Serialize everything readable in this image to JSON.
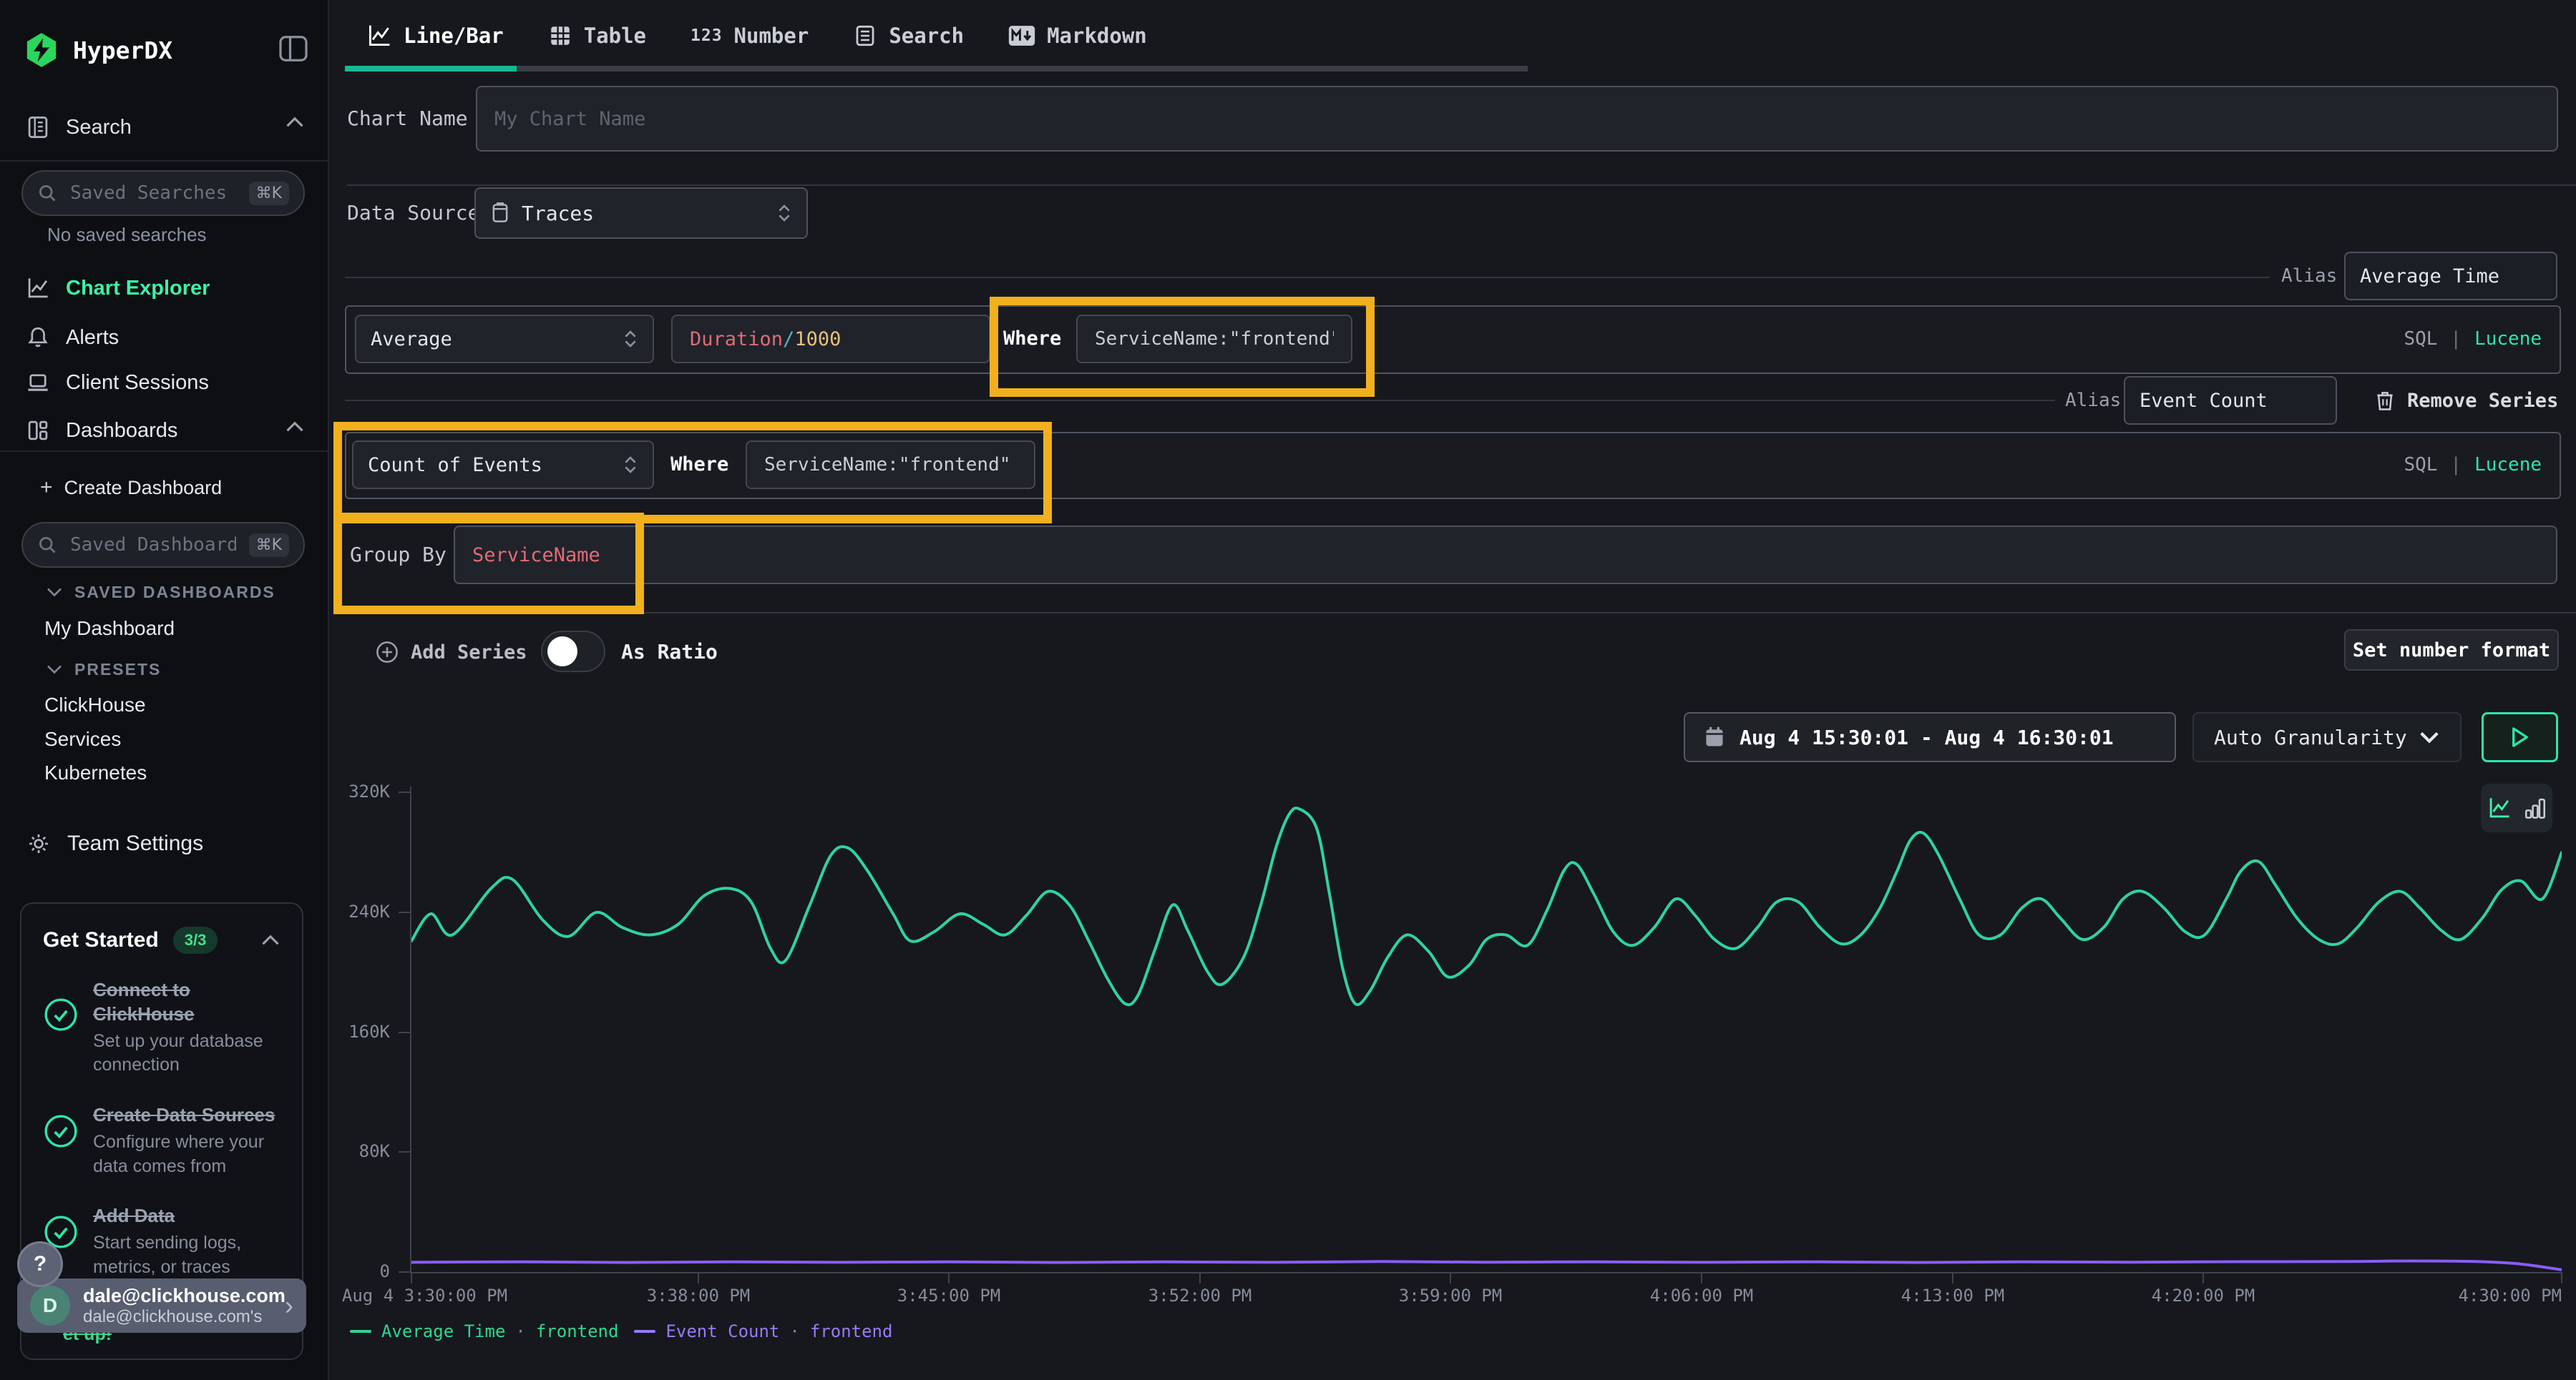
{
  "app": {
    "name": "HyperDX"
  },
  "colors": {
    "accent_teal": "#3df2a6",
    "highlight_orange": "#f2b01e",
    "tab_underline": "#17b893",
    "series_avg_time": "#2ed3a0",
    "series_event_count": "#8b5cf6",
    "token_field": "#e06c75",
    "token_operator": "#56b6c2",
    "token_number": "#e5c07b"
  },
  "sidebar": {
    "search_section": {
      "label": "Search"
    },
    "saved_searches": {
      "placeholder": "Saved Searches",
      "shortcut": "⌘K",
      "empty": "No saved searches"
    },
    "nav": [
      {
        "label": "Chart Explorer"
      },
      {
        "label": "Alerts"
      },
      {
        "label": "Client Sessions"
      },
      {
        "label": "Dashboards"
      }
    ],
    "create_dashboard": {
      "plus": "+",
      "label": "Create Dashboard"
    },
    "saved_dashboards": {
      "placeholder": "Saved Dashboards",
      "shortcut": "⌘K"
    },
    "sections": [
      {
        "label": "SAVED DASHBOARDS",
        "items": [
          "My Dashboard"
        ]
      },
      {
        "label": "PRESETS",
        "items": [
          "ClickHouse",
          "Services",
          "Kubernetes"
        ]
      }
    ],
    "team_settings": "Team Settings",
    "get_started": {
      "title": "Get Started",
      "badge": "3/3",
      "items": [
        {
          "title": "Connect to ClickHouse",
          "desc": "Set up your database connection"
        },
        {
          "title": "Create Data Sources",
          "desc": "Configure where your data comes from"
        },
        {
          "title": "Add Data",
          "desc": "Start sending logs, metrics, or traces"
        }
      ],
      "fragment": "et up!"
    },
    "help": "?",
    "user": {
      "avatar": "D",
      "email": "dale@clickhouse.com",
      "team": "dale@clickhouse.com's",
      "chevron": "›"
    }
  },
  "tabs": [
    {
      "label": "Line/Bar",
      "active": true
    },
    {
      "label": "Table"
    },
    {
      "label": "Number",
      "icon_text": "123"
    },
    {
      "label": "Search"
    },
    {
      "label": "Markdown"
    }
  ],
  "form": {
    "chart_name": {
      "label": "Chart Name",
      "placeholder": "My Chart Name"
    },
    "data_source": {
      "label": "Data Source",
      "value": "Traces"
    },
    "series": [
      {
        "alias_label": "Alias",
        "alias": "Average Time",
        "aggregation": "Average",
        "field_tokens": {
          "field": "Duration",
          "op": "/",
          "num": "1000"
        },
        "where_label": "Where",
        "where": "ServiceName:\"frontend\"",
        "sql": "SQL",
        "pipe": "|",
        "lucene": "Lucene"
      },
      {
        "alias_label": "Alias",
        "alias": "Event Count",
        "aggregation": "Count of Events",
        "where_label": "Where",
        "where": "ServiceName:\"frontend\"",
        "remove": "Remove Series",
        "sql": "SQL",
        "pipe": "|",
        "lucene": "Lucene"
      }
    ],
    "group_by": {
      "label": "Group By",
      "value": "ServiceName"
    },
    "add_series": "Add Series",
    "as_ratio": "As Ratio",
    "set_number_format": "Set number format"
  },
  "toolbar": {
    "date_range": "Aug 4 15:30:01 - Aug 4 16:30:01",
    "granularity": "Auto Granularity"
  },
  "chart_data": {
    "type": "line",
    "ylabel": "",
    "xlabel": "",
    "ylim_k": [
      0,
      324
    ],
    "x_range": [
      "Aug 4 3:30:00 PM",
      "Aug 4 4:30:01 PM"
    ],
    "grid": false,
    "legend_position": "bottom-left",
    "y_axis": {
      "ticks": [
        {
          "v": 320,
          "label": "320K"
        },
        {
          "v": 240,
          "label": "240K"
        },
        {
          "v": 160,
          "label": "160K"
        },
        {
          "v": 80,
          "label": "80K"
        },
        {
          "v": 0,
          "label": "0"
        }
      ]
    },
    "x_axis": {
      "ticks": [
        {
          "f": 0.0,
          "label": "Aug 4 3:30:00 PM"
        },
        {
          "f": 0.1333,
          "label": "3:38:00 PM"
        },
        {
          "f": 0.25,
          "label": "3:45:00 PM"
        },
        {
          "f": 0.3667,
          "label": "3:52:00 PM"
        },
        {
          "f": 0.4833,
          "label": "3:59:00 PM"
        },
        {
          "f": 0.6,
          "label": "4:06:00 PM"
        },
        {
          "f": 0.7167,
          "label": "4:13:00 PM"
        },
        {
          "f": 0.8333,
          "label": "4:20:00 PM"
        },
        {
          "f": 1.0,
          "label": "4:30:00 PM"
        }
      ]
    },
    "series": [
      {
        "name": "Average Time",
        "group": "frontend",
        "color": "#2ed3a0",
        "points": [
          [
            0,
            221
          ],
          [
            0.009,
            239
          ],
          [
            0.019,
            225
          ],
          [
            0.037,
            256
          ],
          [
            0.047,
            262
          ],
          [
            0.061,
            235
          ],
          [
            0.073,
            224
          ],
          [
            0.086,
            240
          ],
          [
            0.098,
            230
          ],
          [
            0.111,
            225
          ],
          [
            0.124,
            232
          ],
          [
            0.136,
            251
          ],
          [
            0.148,
            256
          ],
          [
            0.158,
            247
          ],
          [
            0.167,
            216
          ],
          [
            0.174,
            208
          ],
          [
            0.185,
            244
          ],
          [
            0.195,
            278
          ],
          [
            0.203,
            283
          ],
          [
            0.212,
            268
          ],
          [
            0.224,
            239
          ],
          [
            0.232,
            221
          ],
          [
            0.243,
            227
          ],
          [
            0.255,
            239
          ],
          [
            0.266,
            232
          ],
          [
            0.276,
            225
          ],
          [
            0.286,
            238
          ],
          [
            0.296,
            254
          ],
          [
            0.306,
            245
          ],
          [
            0.315,
            221
          ],
          [
            0.324,
            195
          ],
          [
            0.332,
            179
          ],
          [
            0.338,
            185
          ],
          [
            0.346,
            216
          ],
          [
            0.354,
            245
          ],
          [
            0.361,
            228
          ],
          [
            0.37,
            201
          ],
          [
            0.377,
            192
          ],
          [
            0.387,
            210
          ],
          [
            0.395,
            245
          ],
          [
            0.402,
            283
          ],
          [
            0.408,
            305
          ],
          [
            0.413,
            309
          ],
          [
            0.421,
            296
          ],
          [
            0.427,
            252
          ],
          [
            0.433,
            203
          ],
          [
            0.439,
            179
          ],
          [
            0.446,
            188
          ],
          [
            0.454,
            210
          ],
          [
            0.463,
            225
          ],
          [
            0.473,
            214
          ],
          [
            0.482,
            197
          ],
          [
            0.492,
            205
          ],
          [
            0.5,
            222
          ],
          [
            0.509,
            225
          ],
          [
            0.519,
            218
          ],
          [
            0.528,
            241
          ],
          [
            0.536,
            268
          ],
          [
            0.542,
            272
          ],
          [
            0.55,
            252
          ],
          [
            0.559,
            227
          ],
          [
            0.568,
            218
          ],
          [
            0.578,
            230
          ],
          [
            0.588,
            249
          ],
          [
            0.597,
            238
          ],
          [
            0.606,
            222
          ],
          [
            0.616,
            216
          ],
          [
            0.626,
            230
          ],
          [
            0.635,
            247
          ],
          [
            0.645,
            247
          ],
          [
            0.655,
            230
          ],
          [
            0.665,
            219
          ],
          [
            0.674,
            225
          ],
          [
            0.683,
            243
          ],
          [
            0.691,
            268
          ],
          [
            0.697,
            288
          ],
          [
            0.703,
            293
          ],
          [
            0.71,
            279
          ],
          [
            0.72,
            249
          ],
          [
            0.729,
            225
          ],
          [
            0.739,
            225
          ],
          [
            0.749,
            243
          ],
          [
            0.758,
            249
          ],
          [
            0.767,
            236
          ],
          [
            0.777,
            222
          ],
          [
            0.787,
            230
          ],
          [
            0.796,
            249
          ],
          [
            0.805,
            254
          ],
          [
            0.815,
            243
          ],
          [
            0.825,
            227
          ],
          [
            0.834,
            225
          ],
          [
            0.844,
            249
          ],
          [
            0.851,
            268
          ],
          [
            0.859,
            274
          ],
          [
            0.867,
            258
          ],
          [
            0.877,
            236
          ],
          [
            0.887,
            222
          ],
          [
            0.896,
            219
          ],
          [
            0.905,
            230
          ],
          [
            0.915,
            247
          ],
          [
            0.925,
            254
          ],
          [
            0.934,
            243
          ],
          [
            0.944,
            228
          ],
          [
            0.953,
            222
          ],
          [
            0.963,
            236
          ],
          [
            0.972,
            255
          ],
          [
            0.981,
            261
          ],
          [
            0.991,
            249
          ],
          [
            1,
            280
          ]
        ]
      },
      {
        "name": "Event Count",
        "group": "frontend",
        "color": "#8b5cf6",
        "points": [
          [
            0,
            6.5
          ],
          [
            0.05,
            6.8
          ],
          [
            0.1,
            6.4
          ],
          [
            0.15,
            6.8
          ],
          [
            0.2,
            6.5
          ],
          [
            0.25,
            6.8
          ],
          [
            0.3,
            6.4
          ],
          [
            0.35,
            6.8
          ],
          [
            0.4,
            6.5
          ],
          [
            0.45,
            7
          ],
          [
            0.5,
            6.6
          ],
          [
            0.55,
            6.8
          ],
          [
            0.6,
            6.5
          ],
          [
            0.65,
            6.8
          ],
          [
            0.7,
            6.4
          ],
          [
            0.75,
            6.8
          ],
          [
            0.8,
            6.6
          ],
          [
            0.85,
            6.9
          ],
          [
            0.9,
            7
          ],
          [
            0.93,
            7.4
          ],
          [
            0.96,
            7
          ],
          [
            0.98,
            5.5
          ],
          [
            1,
            1.5
          ]
        ]
      }
    ],
    "legend": [
      {
        "label": "Average Time",
        "sep": "·",
        "group": "frontend",
        "color": "#30d690"
      },
      {
        "label": "Event Count",
        "sep": "·",
        "group": "frontend",
        "color": "#9a7bf7"
      }
    ]
  }
}
